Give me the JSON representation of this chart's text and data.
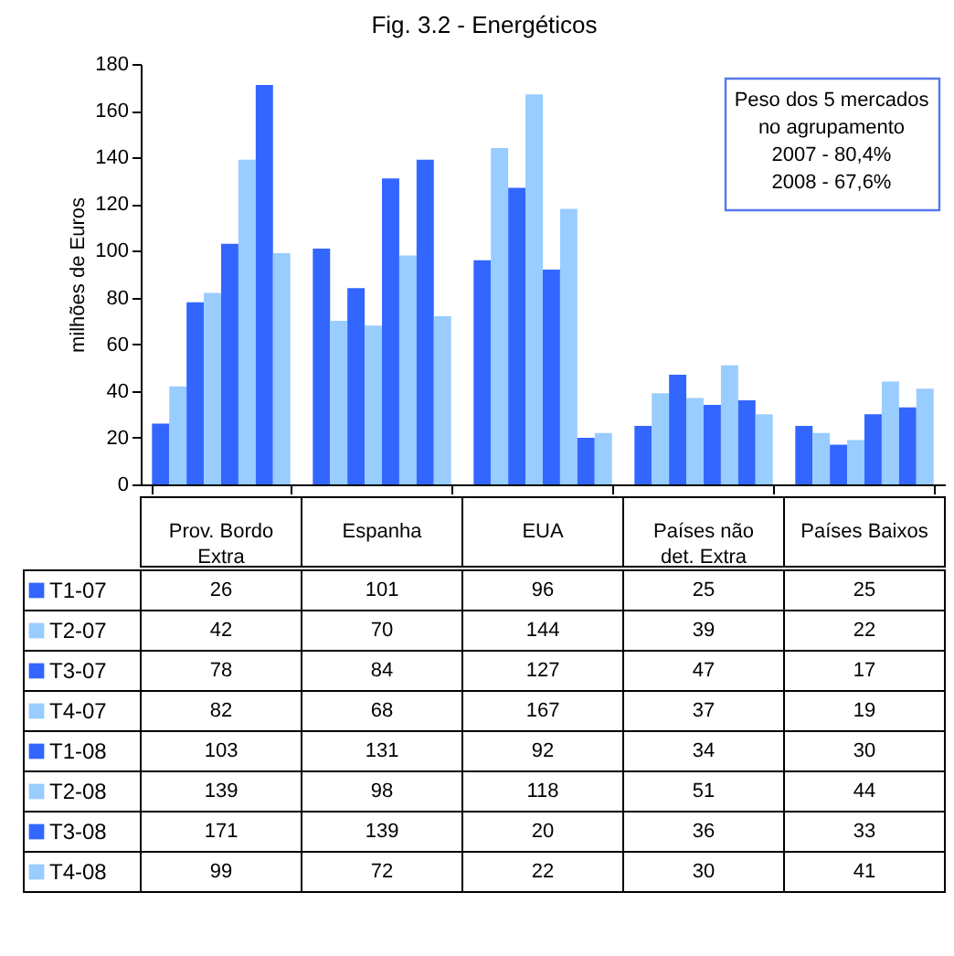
{
  "chart_data": {
    "type": "bar",
    "title": "Fig. 3.2 - Energéticos",
    "ylabel": "milhões de Euros",
    "categories": [
      "Prov. Bordo Extra",
      "Espanha",
      "EUA",
      "Países não det. Extra",
      "Países Baixos"
    ],
    "series": [
      {
        "name": "T1-07",
        "color": "#3366ff",
        "values": [
          26,
          101,
          96,
          25,
          25
        ]
      },
      {
        "name": "T2-07",
        "color": "#99ccff",
        "values": [
          42,
          70,
          144,
          39,
          22
        ]
      },
      {
        "name": "T3-07",
        "color": "#3366ff",
        "values": [
          78,
          84,
          127,
          47,
          17
        ]
      },
      {
        "name": "T4-07",
        "color": "#99ccff",
        "values": [
          82,
          68,
          167,
          37,
          19
        ]
      },
      {
        "name": "T1-08",
        "color": "#3366ff",
        "values": [
          103,
          131,
          92,
          34,
          30
        ]
      },
      {
        "name": "T2-08",
        "color": "#99ccff",
        "values": [
          139,
          98,
          118,
          51,
          44
        ]
      },
      {
        "name": "T3-08",
        "color": "#3366ff",
        "values": [
          171,
          139,
          20,
          36,
          33
        ]
      },
      {
        "name": "T4-08",
        "color": "#99ccff",
        "values": [
          99,
          72,
          22,
          30,
          41
        ]
      }
    ],
    "ylim": [
      0,
      180
    ],
    "yticks": [
      0,
      20,
      40,
      60,
      80,
      100,
      120,
      140,
      160,
      180
    ],
    "grid": false,
    "legend": "bottom",
    "data_labels": true,
    "annotations": [
      "Peso dos 5 mercados",
      "no agrupamento",
      "2007 - 80,4%",
      "2008 - 67,6%"
    ]
  }
}
